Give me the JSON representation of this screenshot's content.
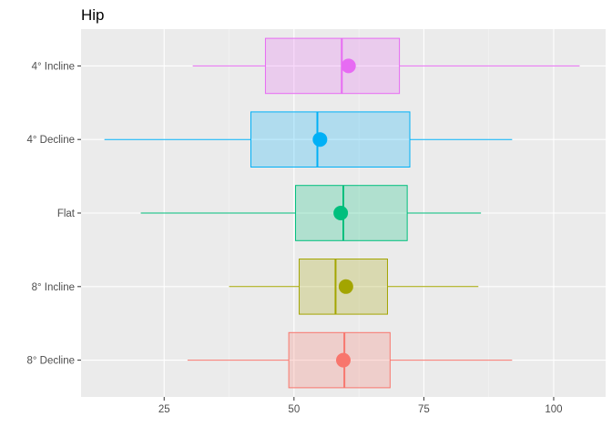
{
  "chart_data": {
    "type": "boxplot",
    "title": "Hip",
    "xlabel": "",
    "ylabel": "",
    "orientation": "horizontal",
    "xlim": [
      9,
      110
    ],
    "x_ticks": [
      25,
      50,
      75,
      100
    ],
    "grid": true,
    "legend": "none",
    "categories": [
      "8° Decline",
      "8° Incline",
      "Flat",
      "4° Decline",
      "4° Incline"
    ],
    "series": [
      {
        "category": "8° Decline",
        "color": "#F8766D",
        "whisker_low": 29.5,
        "q1": 49,
        "median": 59.7,
        "q3": 68.5,
        "whisker_high": 92,
        "mean": 59.5
      },
      {
        "category": "8° Incline",
        "color": "#A3A500",
        "whisker_low": 37.5,
        "q1": 51,
        "median": 58,
        "q3": 68,
        "whisker_high": 85.5,
        "mean": 60
      },
      {
        "category": "Flat",
        "color": "#00BF7D",
        "whisker_low": 20.5,
        "q1": 50.3,
        "median": 59.5,
        "q3": 71.8,
        "whisker_high": 86,
        "mean": 59
      },
      {
        "category": "4° Decline",
        "color": "#00B0F6",
        "whisker_low": 13.5,
        "q1": 41.7,
        "median": 54.5,
        "q3": 72.3,
        "whisker_high": 92,
        "mean": 55
      },
      {
        "category": "4° Incline",
        "color": "#E76BF3",
        "whisker_low": 30.5,
        "q1": 44.5,
        "median": 59.2,
        "q3": 70.3,
        "whisker_high": 105,
        "mean": 60.5
      }
    ]
  }
}
